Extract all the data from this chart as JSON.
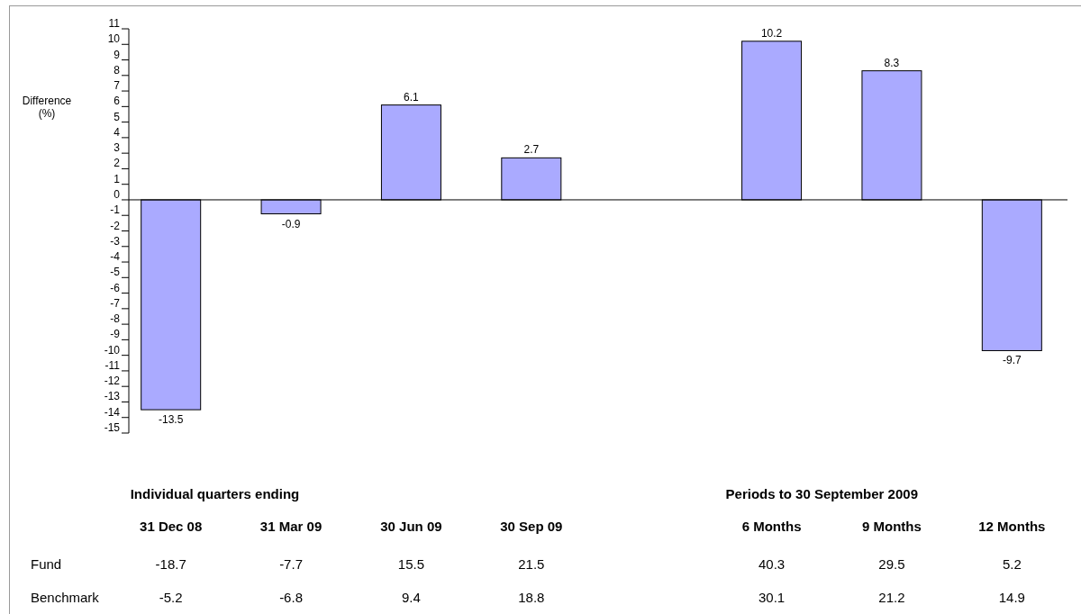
{
  "chart_data": {
    "type": "bar",
    "ylabel": "Difference\n(%)",
    "categories": [
      "31 Dec 08",
      "31 Mar 09",
      "30 Jun 09",
      "30 Sep 09",
      null,
      "6 Months",
      "9 Months",
      "12 Months"
    ],
    "values": [
      -13.5,
      -0.9,
      6.1,
      2.7,
      null,
      10.2,
      8.3,
      -9.7
    ],
    "color": "#aaaaff",
    "data_labels": true,
    "ylim": [
      -15,
      11
    ],
    "yticks": [
      -15,
      -14,
      -13,
      -12,
      -11,
      -10,
      -9,
      -8,
      -7,
      -6,
      -5,
      -4,
      -3,
      -2,
      -1,
      0,
      1,
      2,
      3,
      4,
      5,
      6,
      7,
      8,
      9,
      10,
      11
    ],
    "grid": false,
    "ref_lines": [
      {
        "axis": "y",
        "value": 0,
        "color": "#000000"
      }
    ],
    "annotations": [
      "Individual quarters ending",
      "Periods to 30 September 2009",
      "Fund",
      "-18.7",
      "-7.7",
      "15.5",
      "21.5",
      "40.3",
      "29.5",
      "5.2",
      "Benchmark",
      "-5.2",
      "-6.8",
      "9.4",
      "18.8",
      "30.1",
      "21.2",
      "14.9"
    ]
  }
}
